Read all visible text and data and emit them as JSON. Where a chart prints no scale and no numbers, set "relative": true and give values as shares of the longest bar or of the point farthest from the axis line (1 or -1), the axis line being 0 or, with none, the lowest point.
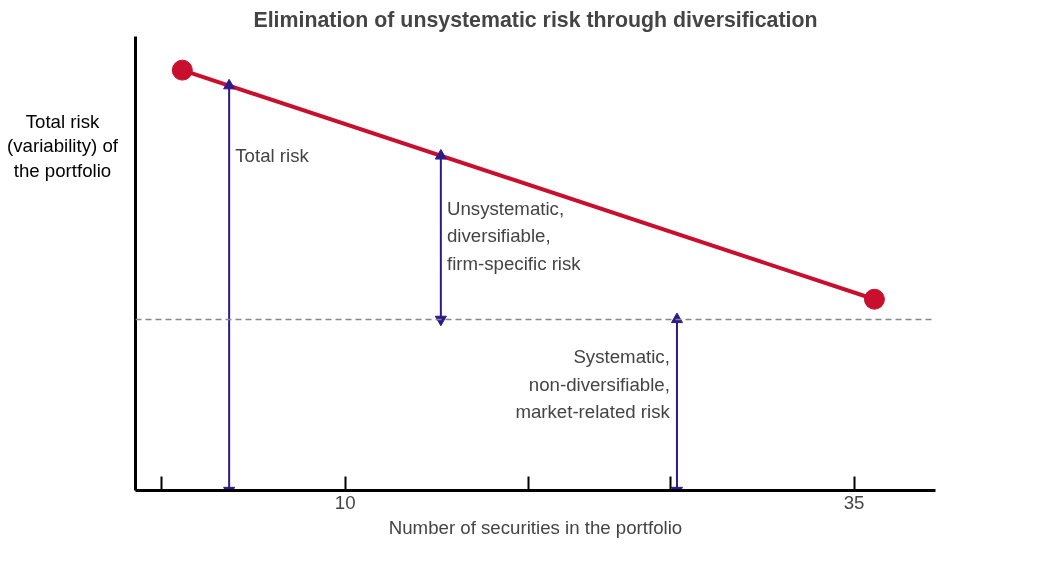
{
  "chart_data": {
    "type": "line",
    "title": "Elimination of unsystematic risk through diversification",
    "xlabel": "Number of securities in the portfolio",
    "ylabel": "Total risk (variability) of the portfolio",
    "relative": true,
    "x": [
      2,
      36
    ],
    "series": [
      {
        "color": "#c8102e",
        "values": [
          1,
          0.455
        ]
      },
      {
        "type": "line",
        "marker": "triangle",
        "color": "#2e1a87",
        "x": [
          4.3,
          4.3
        ],
        "values": [
          0,
          0.963
        ]
      },
      {
        "type": "line",
        "marker": "triangle",
        "color": "#2e1a87",
        "x": [
          14.7,
          14.7
        ],
        "values": [
          0.407,
          0.796
        ]
      },
      {
        "type": "line",
        "marker": "triangle",
        "color": "#2e1a87",
        "x": [
          26.3,
          26.3
        ],
        "values": [
          0,
          0.407
        ]
      }
    ],
    "marker": "circle",
    "line_style": "solid",
    "grid": false,
    "xlim": [
      -0.3,
      39
    ],
    "xticks": [
      {
        "value": 1,
        "label": null
      },
      10,
      {
        "value": 19,
        "label": null
      },
      {
        "value": 26,
        "label": null
      },
      35
    ],
    "ref_lines": [
      {
        "axis": "y",
        "value": 0.407,
        "color": "#888888",
        "line_style": "dashed"
      }
    ],
    "annotations": [
      "Total risk",
      "Unsystematic,\ndiversifiable,\nfirm-specific risk",
      "Systematic,\nnon-diversifiable,\nmarket-related risk"
    ]
  }
}
